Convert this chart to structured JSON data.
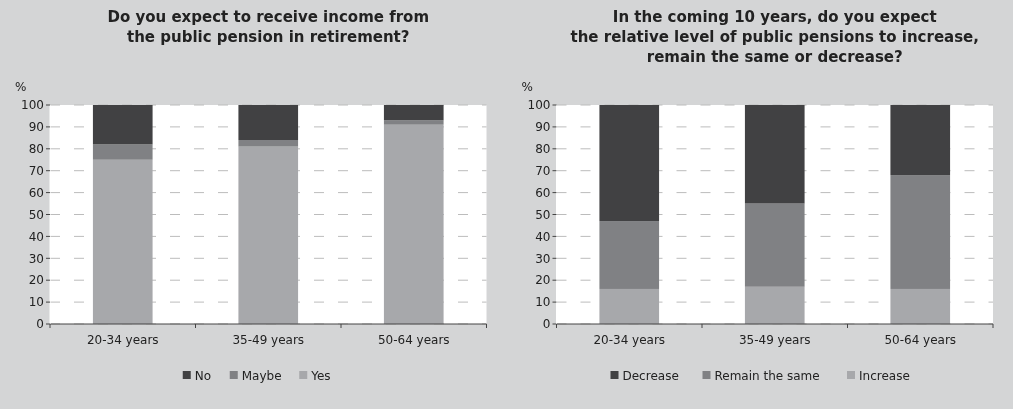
{
  "chart_data": [
    {
      "type": "bar",
      "title": "Do you expect to receive income from\nthe public pension in retirement?",
      "ylabel": "%",
      "categories": [
        "20-34 years",
        "35-49 years",
        "50-64 years"
      ],
      "stacked": true,
      "series": [
        {
          "name": "Yes",
          "color": "#a7a8ab",
          "values": [
            75,
            81,
            91
          ]
        },
        {
          "name": "Maybe",
          "color": "#808184",
          "values": [
            7,
            3,
            2
          ]
        },
        {
          "name": "No",
          "color": "#414143",
          "values": [
            18,
            16,
            7
          ]
        }
      ],
      "ylim": [
        0,
        100
      ],
      "yticks": [
        0,
        10,
        20,
        30,
        40,
        50,
        60,
        70,
        80,
        90,
        100
      ],
      "grid": "y",
      "legend": "bottom"
    },
    {
      "type": "bar",
      "title": "In the coming 10 years, do you expect\nthe relative level of public pensions to increase,\nremain the same or decrease?",
      "ylabel": "%",
      "categories": [
        "20-34 years",
        "35-49 years",
        "50-64 years"
      ],
      "stacked": true,
      "series": [
        {
          "name": "Increase",
          "color": "#a7a8ab",
          "values": [
            16,
            17,
            16
          ]
        },
        {
          "name": "Remain the same",
          "color": "#808184",
          "values": [
            31,
            38,
            52
          ]
        },
        {
          "name": "Decrease",
          "color": "#414143",
          "values": [
            53,
            45,
            32
          ]
        }
      ],
      "ylim": [
        0,
        100
      ],
      "yticks": [
        0,
        10,
        20,
        30,
        40,
        50,
        60,
        70,
        80,
        90,
        100
      ],
      "grid": "y",
      "legend": "bottom"
    }
  ]
}
